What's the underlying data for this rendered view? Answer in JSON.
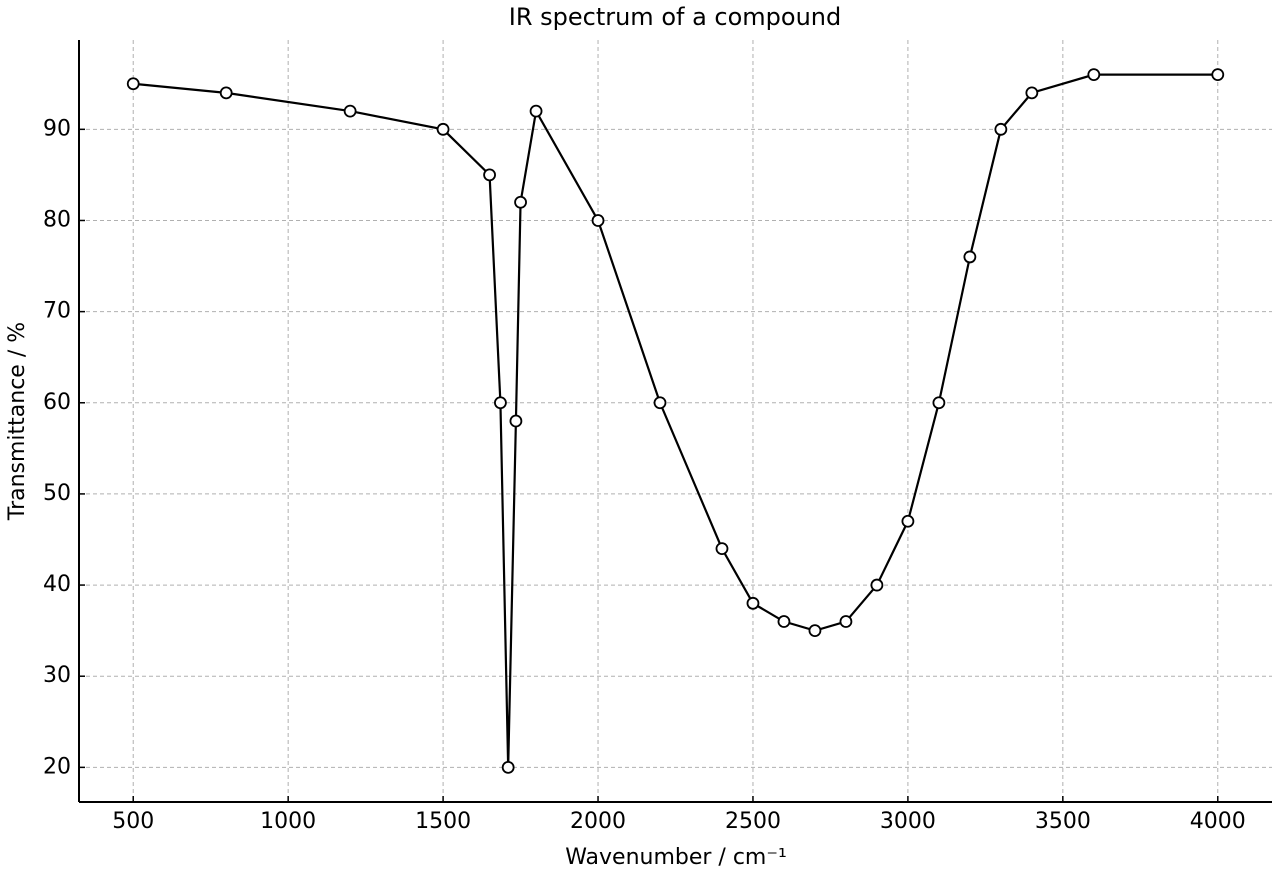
{
  "chart_data": {
    "type": "line",
    "title": "IR spectrum of a compound",
    "x_label": "Wavenumber / cm⁻¹",
    "y_label": "Transmittance / %",
    "x": [
      500,
      800,
      1200,
      1500,
      1650,
      1685,
      1710,
      1735,
      1750,
      1800,
      2000,
      2200,
      2400,
      2500,
      2600,
      2700,
      2800,
      2900,
      3000,
      3100,
      3200,
      3300,
      3400,
      3600,
      4000
    ],
    "series": [
      {
        "name": "Transmittance",
        "color": "#000000",
        "values": [
          95,
          94,
          92,
          90,
          85,
          60,
          20,
          58,
          82,
          92,
          80,
          60,
          44,
          38,
          36,
          35,
          36,
          40,
          47,
          60,
          76,
          90,
          94,
          96,
          96
        ]
      }
    ],
    "xlim": [
      325,
      4175
    ],
    "ylim": [
      16.2,
      99.8
    ],
    "xticks": [
      500,
      1000,
      1500,
      2000,
      2500,
      3000,
      3500,
      4000
    ],
    "yticks": [
      20,
      30,
      40,
      50,
      60,
      70,
      80,
      90
    ],
    "grid": true
  }
}
